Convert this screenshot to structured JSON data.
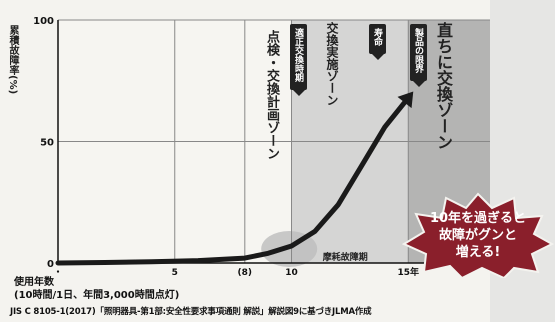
{
  "chart_data": {
    "type": "line",
    "ylabel": "累積故障率(%)",
    "xlabel": "使用年数",
    "xlabel_note": "(10時間/1日、年間3,000時間点灯)",
    "x_ticks": [
      {
        "value": 0,
        "label": "・"
      },
      {
        "value": 5,
        "label": "5"
      },
      {
        "value": 8,
        "label": "(8)"
      },
      {
        "value": 10,
        "label": "10"
      },
      {
        "value": 15,
        "label": "15年"
      }
    ],
    "y_ticks": [
      {
        "value": 0,
        "label": "0"
      },
      {
        "value": 50,
        "label": "50"
      },
      {
        "value": 100,
        "label": "100"
      }
    ],
    "xlim": [
      0,
      18.5
    ],
    "ylim": [
      0,
      100
    ],
    "series": [
      {
        "x": [
          0,
          2,
          4,
          6,
          8,
          9,
          10,
          11,
          12,
          13,
          14,
          15
        ],
        "y": [
          0,
          0.2,
          0.5,
          1,
          2,
          4,
          7,
          13,
          24,
          40,
          56,
          68
        ]
      }
    ],
    "zones": [
      {
        "label": "点検・交換計画ゾーン",
        "tag": "適正交換時期",
        "x_start": 8,
        "x_end": 10
      },
      {
        "label": "交換実施ゾーン",
        "tag": "寿命",
        "x_start": 10,
        "x_end": 15
      },
      {
        "label": "直ちに交換ゾーン",
        "tag": "製品の限界",
        "x_start": 15,
        "x_end": 18.5
      }
    ],
    "region_label": "摩耗故障期",
    "callout": [
      "10年を過ぎると",
      "故障がグンと",
      "増える!"
    ],
    "source": "JIS C 8105-1(2017)「照明器具-第1部:安全性要求事項通則 解説」解説図9に基づきJLMA作成",
    "colors": {
      "zone_mid": "#c9c9c9",
      "zone_dark": "#9e9e9e",
      "curve": "#1a1a1a",
      "callout": "#8a1f2b"
    }
  }
}
